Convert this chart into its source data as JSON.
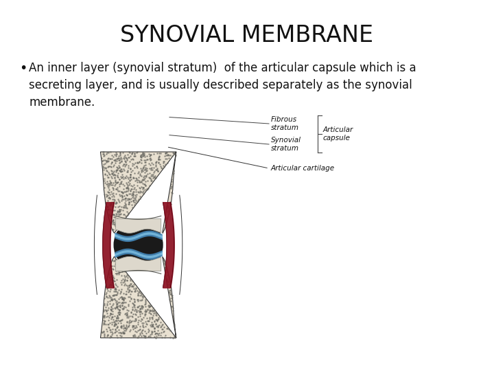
{
  "title": "SYNOVIAL MEMBRANE",
  "title_fontsize": 24,
  "title_color": "#111111",
  "bullet_text": "An inner layer (synovial stratum)  of the articular capsule which is a\nsecreting layer, and is usually described separately as the synovial\nmembrane.",
  "bullet_fontsize": 12,
  "bg_color": "#ffffff",
  "text_color": "#111111",
  "label_articular_cartilage": "Articular cartilage",
  "label_synovial_stratum": "Synovial\nstratum",
  "label_fibrous_stratum": "Fibrous\nstratum",
  "label_articular_capsule": "Articular\ncapsule",
  "label_fontsize": 7.5,
  "bone_fill": "#e8e0d0",
  "bone_dot_color": "#888888",
  "outer_line_color": "#333333",
  "red_strip_color": "#8B1020",
  "black_cavity_color": "#1a1a1a",
  "blue_line_color": "#4488bb",
  "blue_highlight_color": "#88ccee"
}
